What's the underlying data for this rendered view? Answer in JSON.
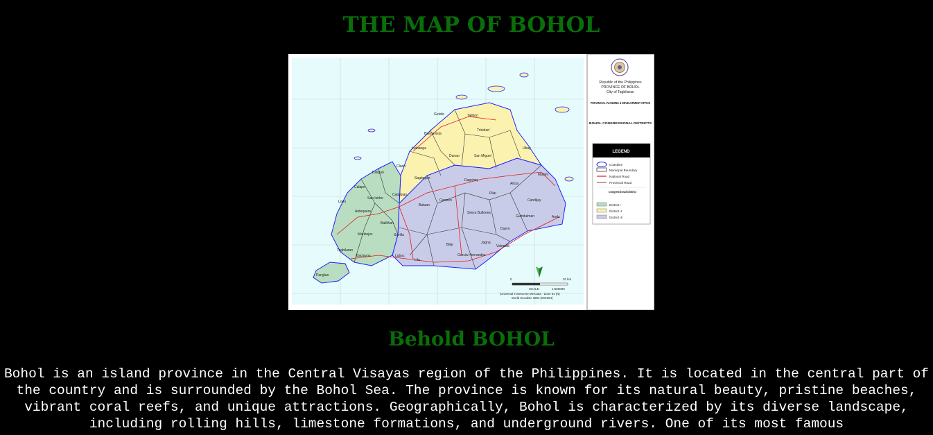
{
  "page": {
    "title": "THE MAP OF BOHOL",
    "subtitle": "Behold BOHOL",
    "description": "Bohol is an island province in the Central Visayas region of the Philippines. It is located in the central part of the country and is surrounded by the Bohol Sea. The province is known for its natural beauty, pristine beaches, vibrant coral reefs, and unique attractions. Geographically, Bohol is characterized by its diverse landscape, including rolling hills, limestone formations, and underground rivers. One of its most famous"
  },
  "map": {
    "header": {
      "line1": "Republic of the Philippines",
      "line2": "PROVINCE OF BOHOL",
      "line3": "City of Tagbilaran",
      "office": "PROVINCIAL PLANNING & DEVELOPMENT OFFICE",
      "map_title": "BOHOL CONGRESSIONAL DISTRICTS"
    },
    "legend": {
      "heading": "LEGEND",
      "coastline": "Coastline",
      "municipal_boundary": "Municipal Boundary",
      "national_road": "National Road",
      "provincial_road": "Provincial Road",
      "district_heading": "Congressional District",
      "district1": "District I",
      "district2": "District II",
      "district3": "District III"
    },
    "scale": {
      "zero": "0",
      "twenty": "20 km",
      "scale_label": "SCALE",
      "ratio": "1:500000",
      "projection": "(Universal Transverse Mercator - Zone 51 (N)",
      "datum": "World Geodetic 1984 (WGS84)"
    },
    "colors": {
      "district1": "#b9ddc0",
      "district2": "#fbf2b0",
      "district3": "#c9cce8",
      "sea": "#e6fbfb",
      "coastline": "#1a1aff",
      "national_road": "#e01a1a"
    },
    "towns": [
      "Talibon",
      "Getafe",
      "Ubay",
      "Trinidad",
      "Buenavista",
      "Inabanga",
      "Danao",
      "San Miguel",
      "Tubigon",
      "Clarin",
      "Calape",
      "San Isidro",
      "Catigbian",
      "Sagbayan",
      "Dagohoy",
      "Alicia",
      "Mabini",
      "Loon",
      "Antequera",
      "Balilihan",
      "Batuan",
      "Carmen",
      "Pilar",
      "Candijay",
      "Maribojoc",
      "Sevilla",
      "Sierra Bullones",
      "Guindulman",
      "Anda",
      "Duero",
      "Tagbilaran",
      "Baclayon",
      "Loboc",
      "Bilar",
      "Jagna",
      "Garcia Hernandez",
      "Panglao",
      "Lila",
      "Valencia"
    ]
  }
}
